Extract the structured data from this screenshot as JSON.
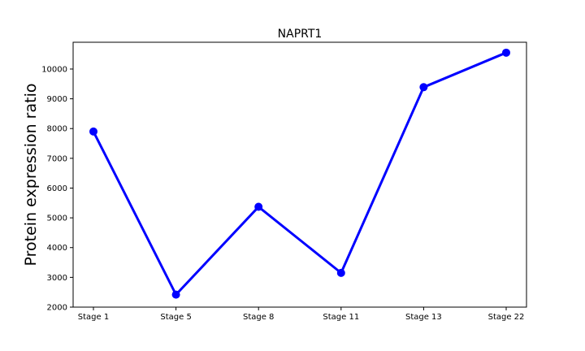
{
  "chart_data": {
    "type": "line",
    "title": "NAPRT1",
    "xlabel": "",
    "ylabel": "Protein expression ratio",
    "categories": [
      "Stage 1",
      "Stage 5",
      "Stage 8",
      "Stage 11",
      "Stage 13",
      "Stage 22"
    ],
    "series": [
      {
        "values": [
          7900,
          2420,
          5370,
          3150,
          9390,
          10550
        ],
        "color": "#0000ff",
        "marker": "circle"
      }
    ],
    "ylim": [
      2000,
      10900
    ],
    "yticks": [
      2000,
      3000,
      4000,
      5000,
      6000,
      7000,
      8000,
      9000,
      10000
    ],
    "grid": false,
    "legend": "none"
  }
}
